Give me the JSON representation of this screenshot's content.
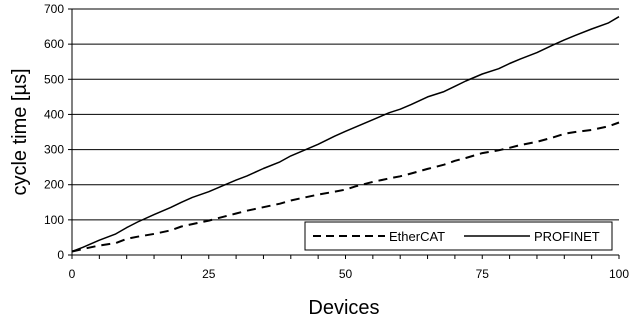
{
  "chart_data": {
    "type": "line",
    "title": "",
    "xlabel": "Devices",
    "ylabel": "cycle time [µs]",
    "xlim": [
      0,
      100
    ],
    "ylim": [
      0,
      700
    ],
    "x_ticks": [
      "0",
      "25",
      "50",
      "75",
      "100"
    ],
    "y_ticks": [
      "0",
      "100",
      "200",
      "300",
      "400",
      "500",
      "600",
      "700"
    ],
    "grid": "horizontal",
    "legend_position": "bottom-right",
    "series": [
      {
        "name": "EtherCAT",
        "style": "dashed",
        "color": "#000000",
        "x": [
          0,
          2,
          5,
          8,
          10,
          12,
          15,
          18,
          20,
          22,
          25,
          28,
          30,
          32,
          35,
          38,
          40,
          42,
          45,
          48,
          50,
          52,
          55,
          58,
          60,
          62,
          65,
          68,
          70,
          72,
          75,
          78,
          80,
          82,
          85,
          88,
          90,
          92,
          95,
          98,
          100
        ],
        "values": [
          10,
          17,
          27,
          34,
          46,
          52,
          60,
          70,
          81,
          88,
          98,
          110,
          118,
          126,
          136,
          146,
          155,
          162,
          172,
          180,
          186,
          196,
          208,
          218,
          224,
          232,
          245,
          257,
          268,
          276,
          290,
          298,
          305,
          313,
          322,
          335,
          345,
          350,
          356,
          366,
          377
        ]
      },
      {
        "name": "PROFINET",
        "style": "solid",
        "color": "#000000",
        "x": [
          0,
          2,
          5,
          8,
          10,
          12,
          15,
          18,
          20,
          22,
          25,
          28,
          30,
          32,
          35,
          38,
          40,
          42,
          45,
          48,
          50,
          52,
          55,
          58,
          60,
          62,
          65,
          68,
          70,
          72,
          75,
          78,
          80,
          82,
          85,
          88,
          90,
          92,
          95,
          98,
          100
        ],
        "values": [
          10,
          22,
          42,
          60,
          78,
          94,
          115,
          135,
          150,
          164,
          180,
          200,
          213,
          225,
          246,
          265,
          282,
          295,
          315,
          338,
          352,
          365,
          385,
          405,
          415,
          428,
          450,
          465,
          480,
          495,
          515,
          530,
          545,
          558,
          576,
          598,
          612,
          625,
          643,
          660,
          678
        ]
      }
    ]
  }
}
